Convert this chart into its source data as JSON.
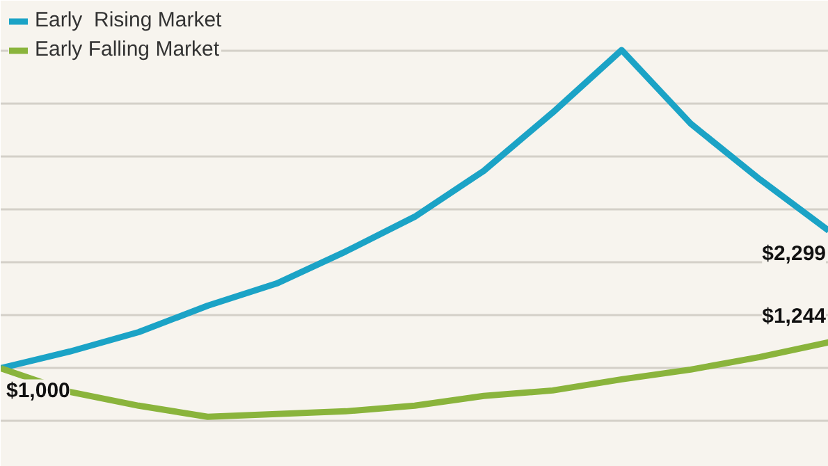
{
  "chart_data": {
    "type": "line",
    "categories": [
      null,
      null,
      null,
      null,
      null,
      null,
      null,
      null,
      null,
      null,
      null,
      null,
      null
    ],
    "series": [
      {
        "name": "Early  Rising Market",
        "color": "#1ba3c6",
        "values": [
          1000,
          1157,
          1341,
          1590,
          1800,
          2102,
          2430,
          2863,
          3414,
          4004,
          3309,
          2784,
          2299
        ],
        "value_labels": [
          null,
          null,
          null,
          null,
          null,
          null,
          null,
          null,
          null,
          null,
          null,
          null,
          "$2,299"
        ]
      },
      {
        "name": "Early Falling Market",
        "color": "#8ab43c",
        "values": [
          1000,
          777,
          646,
          541,
          567,
          593,
          646,
          738,
          790,
          895,
          987,
          1105,
          1244
        ],
        "value_labels": [
          "$1,000",
          null,
          null,
          null,
          null,
          null,
          null,
          null,
          null,
          null,
          null,
          null,
          "$1,244"
        ]
      }
    ],
    "ylim": [
      70,
      4470
    ],
    "yticks": [
      {
        "value": 500,
        "label": null
      },
      {
        "value": 1000,
        "label": null
      },
      {
        "value": 1500,
        "label": null
      },
      {
        "value": 2000,
        "label": null
      },
      {
        "value": 2500,
        "label": null
      },
      {
        "value": 3000,
        "label": null
      },
      {
        "value": 3500,
        "label": null
      },
      {
        "value": 4000,
        "label": null
      }
    ],
    "grid": "y",
    "tick_labels": false,
    "legend": "top left",
    "marker": "none",
    "line_style": "solid"
  }
}
